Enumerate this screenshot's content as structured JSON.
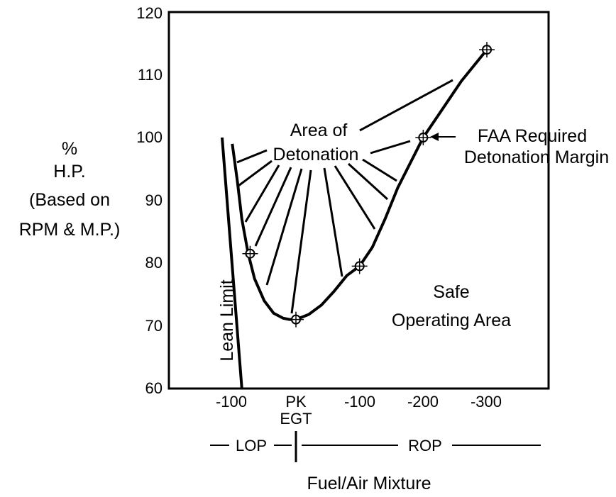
{
  "chart_data": {
    "type": "line",
    "title": "",
    "xlabel": "Fuel/Air Mixture",
    "ylabel_lines": [
      "%",
      "H.P.",
      "(Based on",
      "RPM & M.P.)"
    ],
    "y_ticks": [
      "60",
      "70",
      "80",
      "90",
      "100",
      "110",
      "120"
    ],
    "ylim": [
      60,
      120
    ],
    "x_ticks": [
      "-100",
      "PK",
      "-100",
      "-200",
      "-300"
    ],
    "x_tick_sublabel": "EGT",
    "x_tick_values": [
      -100,
      0,
      100,
      200,
      300
    ],
    "xlim": [
      -200,
      400
    ],
    "grid": false,
    "legend": "none",
    "series": [
      {
        "x": [
          -100,
          -92,
          -85,
          -75,
          -65,
          -50,
          -35,
          -20,
          -10,
          0,
          20,
          40,
          60,
          80,
          100,
          120,
          140,
          160,
          180,
          200,
          230,
          260,
          300
        ],
        "values": [
          99,
          93,
          87,
          81.5,
          77.5,
          74,
          72,
          71.2,
          71,
          71,
          71.8,
          73.3,
          75.5,
          78,
          79.5,
          82.5,
          87,
          92,
          96,
          100,
          104.5,
          109,
          114
        ]
      }
    ],
    "marked_points": [
      {
        "x": -72,
        "y": 81.5
      },
      {
        "x": 0,
        "y": 71
      },
      {
        "x": 100,
        "y": 79.5
      },
      {
        "x": 200,
        "y": 100
      },
      {
        "x": 300,
        "y": 114
      }
    ],
    "lean_limit": {
      "label": "Lean Limit",
      "from": {
        "x": -116,
        "y": 100
      },
      "to": {
        "x": -85,
        "y": 60
      }
    },
    "detonation_area_label": [
      "Area of",
      "Detonation"
    ],
    "annotation_faa": [
      "FAA Required",
      "Detonation Margin"
    ],
    "safe_area_label": [
      "Safe",
      "Operating Area"
    ],
    "lop_label": "LOP",
    "rop_label": "ROP"
  }
}
